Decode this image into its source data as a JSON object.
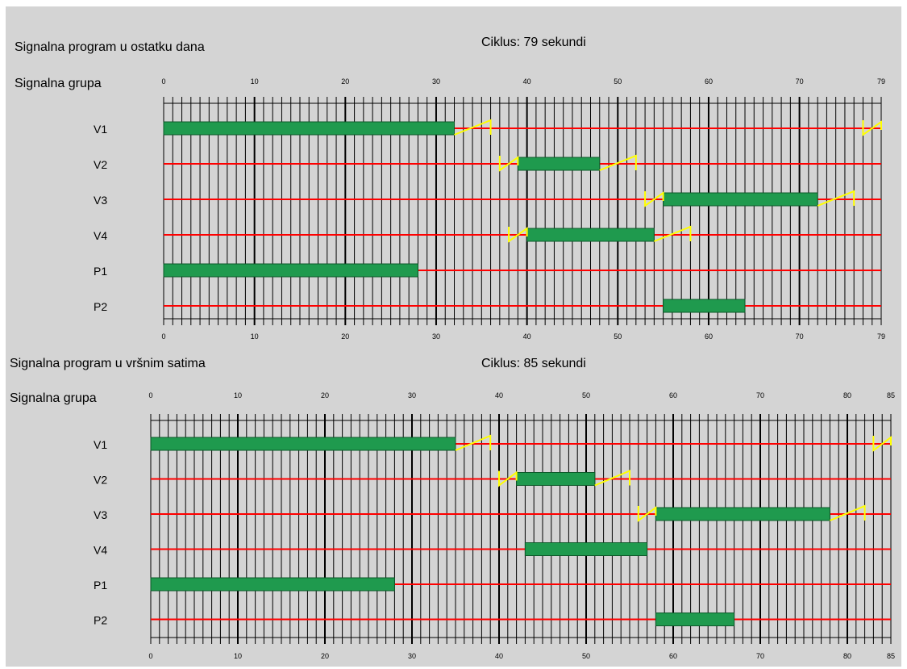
{
  "diagrams": [
    {
      "title": "Signalna program u ostatku dana",
      "cycle_label": "Ciklus: 79 sekundi",
      "group_header": "Signalna grupa",
      "cycle": 79,
      "ticks": [
        "0",
        "10",
        "20",
        "30",
        "40",
        "50",
        "60",
        "70",
        "79"
      ],
      "groups": [
        {
          "name": "V1",
          "green": [
            [
              0,
              32
            ]
          ],
          "yellow_ramps": [
            [
              32,
              36
            ]
          ],
          "red_yellow": [
            [
              77,
              79
            ]
          ]
        },
        {
          "name": "V2",
          "green": [
            [
              39,
              48
            ]
          ],
          "yellow_ramps": [
            [
              48,
              52
            ]
          ],
          "red_yellow": [
            [
              37,
              39
            ]
          ]
        },
        {
          "name": "V3",
          "green": [
            [
              55,
              72
            ]
          ],
          "yellow_ramps": [
            [
              72,
              76
            ]
          ],
          "red_yellow": [
            [
              53,
              55
            ]
          ]
        },
        {
          "name": "V4",
          "green": [
            [
              40,
              54
            ]
          ],
          "yellow_ramps": [
            [
              54,
              58
            ]
          ],
          "red_yellow": [
            [
              38,
              40
            ]
          ]
        },
        {
          "name": "P1",
          "green": [
            [
              0,
              28
            ]
          ],
          "yellow_ramps": [],
          "red_yellow": []
        },
        {
          "name": "P2",
          "green": [
            [
              55,
              64
            ]
          ],
          "yellow_ramps": [],
          "red_yellow": []
        }
      ]
    },
    {
      "title": "Signalna program u vršnim satima",
      "cycle_label": "Ciklus: 85 sekundi",
      "group_header": "Signalna grupa",
      "cycle": 85,
      "ticks": [
        "0",
        "10",
        "20",
        "30",
        "40",
        "50",
        "60",
        "70",
        "80",
        "85"
      ],
      "groups": [
        {
          "name": "V1",
          "green": [
            [
              0,
              35
            ]
          ],
          "yellow_ramps": [
            [
              35,
              39
            ]
          ],
          "red_yellow": [
            [
              83,
              85
            ]
          ]
        },
        {
          "name": "V2",
          "green": [
            [
              42,
              51
            ]
          ],
          "yellow_ramps": [
            [
              51,
              55
            ]
          ],
          "red_yellow": [
            [
              40,
              42
            ]
          ]
        },
        {
          "name": "V3",
          "green": [
            [
              58,
              78
            ]
          ],
          "yellow_ramps": [
            [
              78,
              82
            ]
          ],
          "red_yellow": [
            [
              56,
              58
            ]
          ]
        },
        {
          "name": "V4",
          "green": [
            [
              43,
              57
            ]
          ],
          "yellow_ramps": [],
          "red_yellow": []
        },
        {
          "name": "P1",
          "green": [
            [
              0,
              28
            ]
          ],
          "yellow_ramps": [],
          "red_yellow": []
        },
        {
          "name": "P2",
          "green": [
            [
              58,
              67
            ]
          ],
          "yellow_ramps": [],
          "red_yellow": []
        }
      ]
    }
  ],
  "colors": {
    "green": "#1f9a4e",
    "red": "#ff0000",
    "yellow": "#ffff00",
    "grid": "#000000",
    "background": "#d4d4d4"
  }
}
